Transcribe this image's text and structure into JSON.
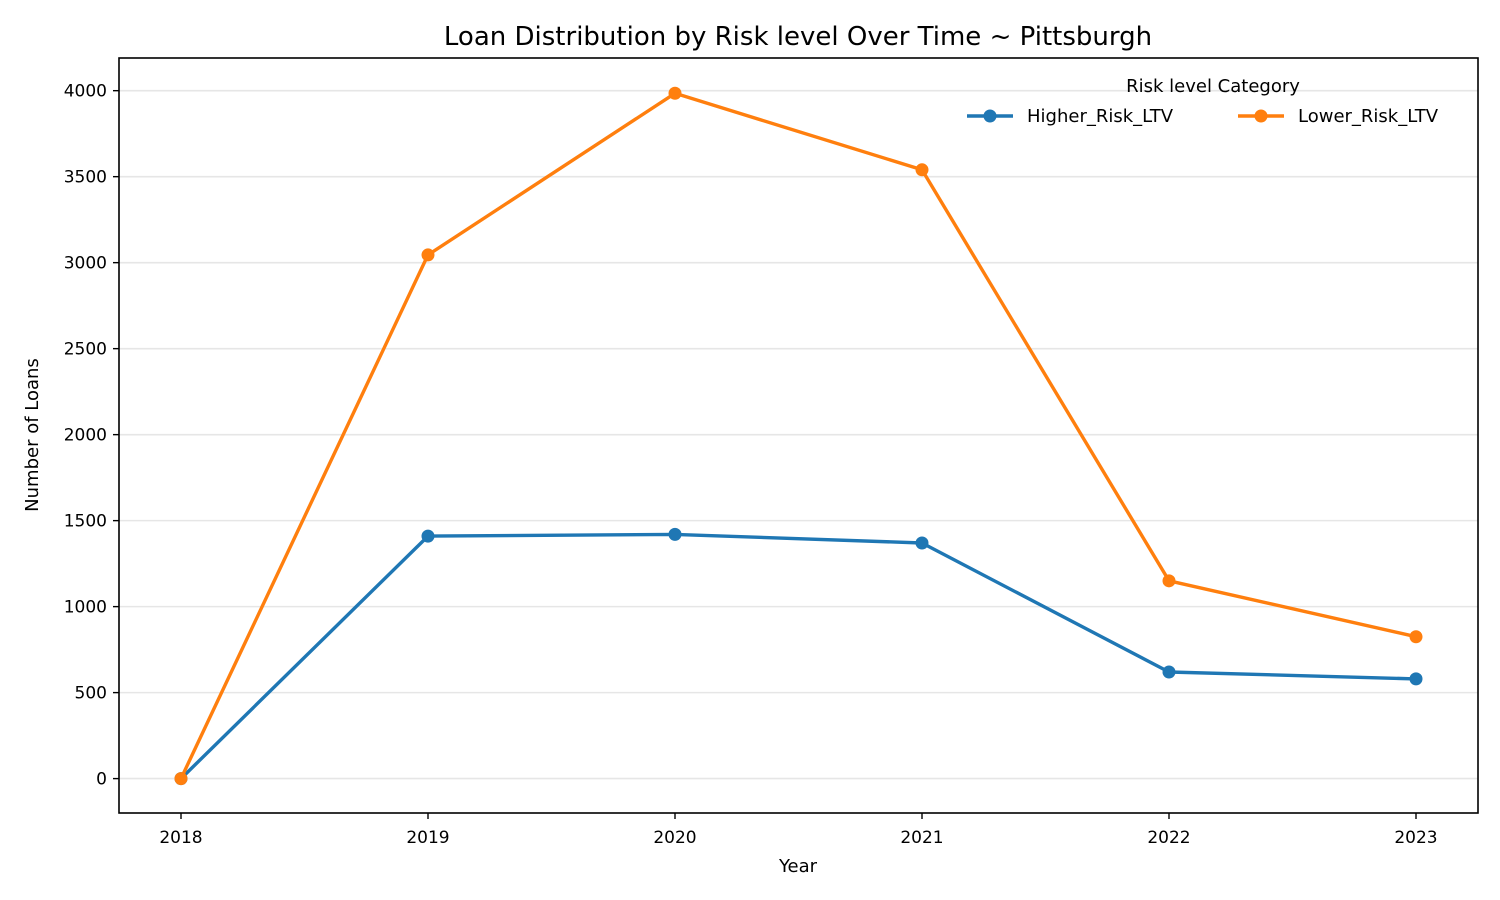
{
  "chart_data": {
    "type": "line",
    "title": "Loan Distribution by Risk level Over Time ~ Pittsburgh",
    "xlabel": "Year",
    "ylabel": "Number of Loans",
    "categories": [
      "2018",
      "2019",
      "2020",
      "2021",
      "2022",
      "2023"
    ],
    "x_tick_labels": [
      "2018",
      "2019",
      "2020",
      "2021",
      "2022",
      "2023"
    ],
    "y_ticks": [
      0,
      500,
      1000,
      1500,
      2000,
      2500,
      3000,
      3500,
      4000
    ],
    "y_tick_labels": [
      "0",
      "500",
      "1000",
      "1500",
      "2000",
      "2500",
      "3000",
      "3500",
      "4000"
    ],
    "ylim": [
      -200,
      4190
    ],
    "grid": "horizontal",
    "legend": {
      "title": "Risk level Category",
      "placement": "upper-right",
      "columns": 2
    },
    "series": [
      {
        "name": "Higher_Risk_LTV",
        "color": "#1f77b4",
        "marker": "circle",
        "values": [
          0,
          1410,
          1420,
          1370,
          620,
          580
        ]
      },
      {
        "name": "Lower_Risk_LTV",
        "color": "#ff7f0e",
        "marker": "circle",
        "values": [
          0,
          3045,
          3985,
          3540,
          1150,
          825
        ]
      }
    ]
  }
}
